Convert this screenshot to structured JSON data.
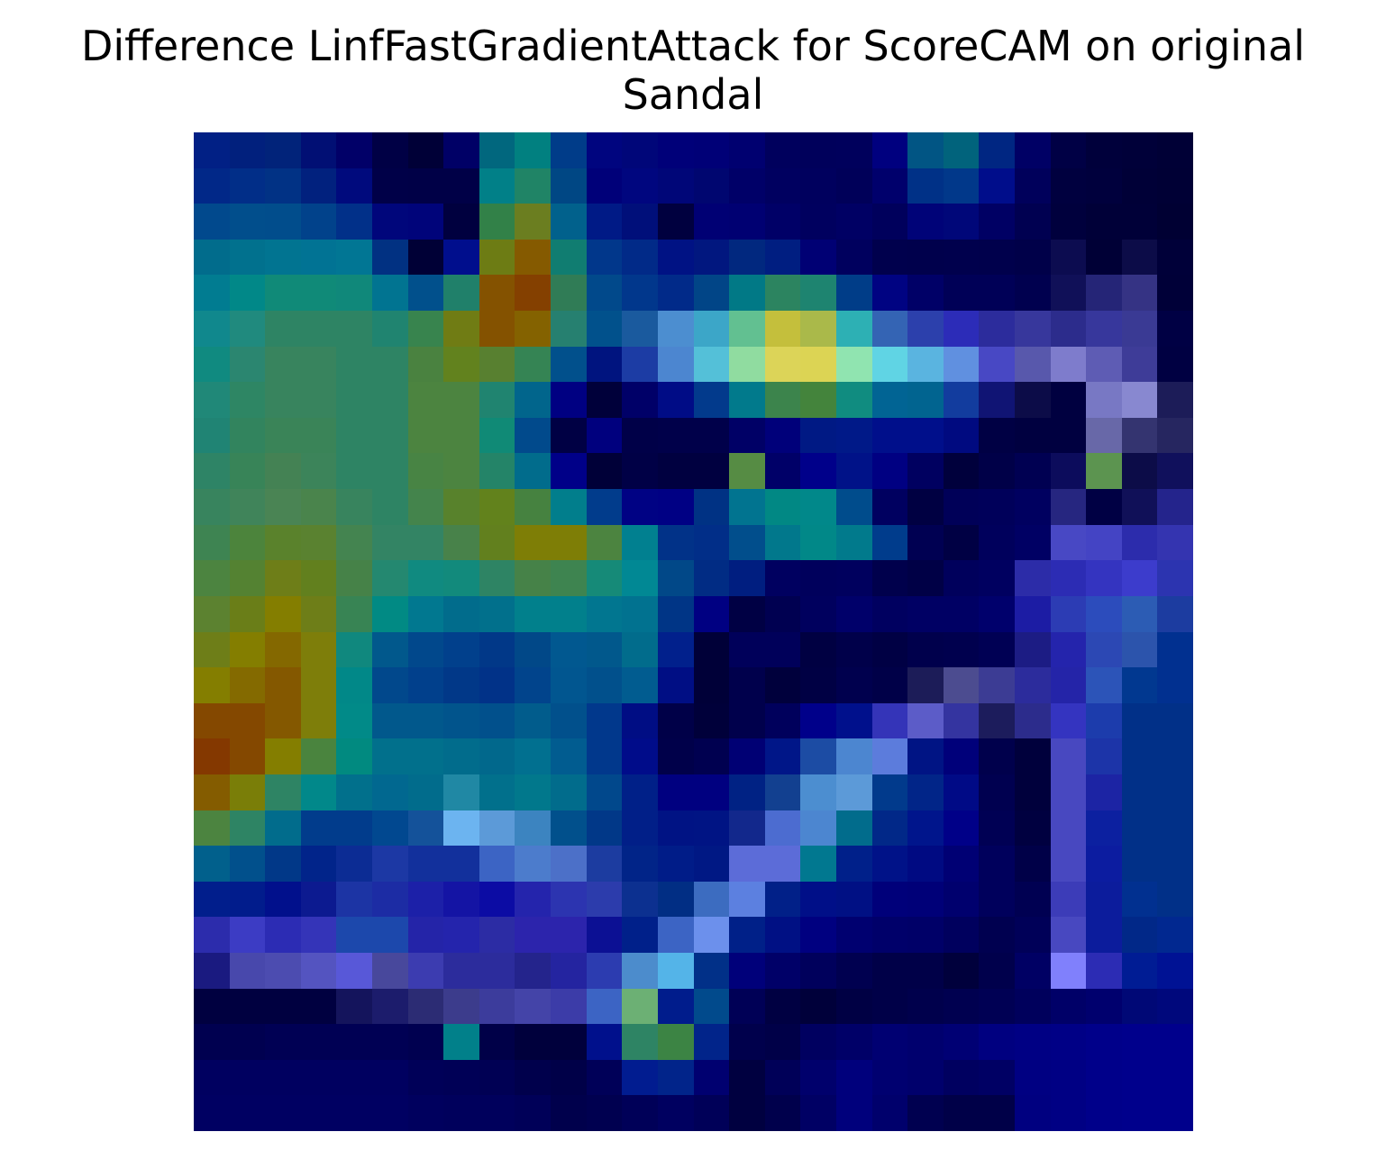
{
  "title": {
    "line1": "Difference LinfFastGradientAttack for ScoreCAM on original",
    "line2": "Sandal"
  },
  "chart_data": {
    "type": "heatmap",
    "title": "Difference LinfFastGradientAttack for ScoreCAM on original Sandal",
    "rows": 28,
    "cols": 28,
    "axes": "off",
    "grid": false,
    "legend": "none",
    "cells": [
      [
        "#012085",
        "#01207d",
        "#01237a",
        "#010f74",
        "#010068",
        "#000045",
        "#000037",
        "#000066",
        "#01677e",
        "#018080",
        "#003c89",
        "#00057f",
        "#000679",
        "#000079",
        "#000077",
        "#000070",
        "#00005d",
        "#00005b",
        "#00005c",
        "#00007f",
        "#015584",
        "#01637c",
        "#002682",
        "#000065",
        "#000045",
        "#00003b",
        "#000039",
        "#000036"
      ],
      [
        "#012888",
        "#012e88",
        "#013285",
        "#01217e",
        "#000a7d",
        "#000048",
        "#000047",
        "#000047",
        "#018088",
        "#208466",
        "#004784",
        "#000079",
        "#00067f",
        "#000678",
        "#000670",
        "#000068",
        "#000060",
        "#00005e",
        "#000059",
        "#00006c",
        "#003187",
        "#01388a",
        "#000d8b",
        "#00005b",
        "#00003f",
        "#00003d",
        "#000037",
        "#000035"
      ],
      [
        "#01498d",
        "#014e8c",
        "#014d8c",
        "#01428b",
        "#013089",
        "#00067b",
        "#00047a",
        "#00003f",
        "#328148",
        "#6b7e20",
        "#01618c",
        "#001a86",
        "#000f7a",
        "#00003f",
        "#000074",
        "#000072",
        "#000067",
        "#00005f",
        "#000064",
        "#00005c",
        "#000378",
        "#000779",
        "#000064",
        "#000051",
        "#00003d",
        "#000038",
        "#000038",
        "#000033"
      ],
      [
        "#016c8c",
        "#01718e",
        "#017491",
        "#017394",
        "#017694",
        "#013182",
        "#000036",
        "#000e8d",
        "#6d7c14",
        "#855a00",
        "#107d71",
        "#01378b",
        "#012a88",
        "#001284",
        "#01177f",
        "#01287f",
        "#001e81",
        "#000074",
        "#00005e",
        "#00004d",
        "#00004c",
        "#00004d",
        "#00004c",
        "#000049",
        "#0c0c50",
        "#000036",
        "#0c0c48",
        "#000039"
      ],
      [
        "#017c91",
        "#018888",
        "#108a78",
        "#108a78",
        "#10887a",
        "#017491",
        "#01508c",
        "#20806a",
        "#845200",
        "#844000",
        "#307c56",
        "#01498b",
        "#01378c",
        "#012a89",
        "#014587",
        "#017986",
        "#2c8460",
        "#1e8470",
        "#003d88",
        "#000382",
        "#000067",
        "#000057",
        "#000057",
        "#00004f",
        "#101058",
        "#252577",
        "#353384",
        "#000038"
      ],
      [
        "#10888d",
        "#208a7e",
        "#2e8464",
        "#2e8464",
        "#2e8464",
        "#208470",
        "#38844e",
        "#707c14",
        "#845200",
        "#846200",
        "#268070",
        "#01518c",
        "#1a5a9e",
        "#4c8ed0",
        "#3ca6c8",
        "#62c091",
        "#c4bf3c",
        "#aab94a",
        "#2db0b4",
        "#3464b4",
        "#2c40ac",
        "#2c2cb8",
        "#2c2c9c",
        "#37379c",
        "#2c2c8c",
        "#37379c",
        "#3a3a94",
        "#000044"
      ],
      [
        "#108a80",
        "#2b8670",
        "#38845e",
        "#38845e",
        "#2e8464",
        "#2e8464",
        "#4a8240",
        "#62821e",
        "#588030",
        "#358454",
        "#01508c",
        "#00147f",
        "#1c3ca4",
        "#4c86d0",
        "#54c0d8",
        "#90dca0",
        "#dcd458",
        "#dcd454",
        "#90e4b0",
        "#60d4e4",
        "#5ab4e0",
        "#6090e0",
        "#4848c4",
        "#5858ac",
        "#7e7ccc",
        "#5e5cb4",
        "#3e3c98",
        "#000042"
      ],
      [
        "#208878",
        "#2e8664",
        "#38845e",
        "#38845e",
        "#2e8464",
        "#2e8464",
        "#4c8440",
        "#4c8440",
        "#208470",
        "#01658c",
        "#000082",
        "#00003a",
        "#000068",
        "#000c86",
        "#023a8c",
        "#017a8c",
        "#3c844c",
        "#44843c",
        "#108c80",
        "#016494",
        "#016490",
        "#123c9e",
        "#101474",
        "#0c0c48",
        "#000040",
        "#7878c4",
        "#8888d0",
        "#1c1c58"
      ],
      [
        "#208474",
        "#32845e",
        "#3a8458",
        "#3a8458",
        "#2e8464",
        "#2e8464",
        "#4c8440",
        "#4c8440",
        "#108a76",
        "#014a8c",
        "#000044",
        "#00007e",
        "#000048",
        "#00004a",
        "#00004a",
        "#000066",
        "#00007a",
        "#001984",
        "#001988",
        "#000f8b",
        "#000f8b",
        "#000a80",
        "#000044",
        "#000040",
        "#000040",
        "#6868a8",
        "#343470",
        "#262660"
      ],
      [
        "#2e8466",
        "#388458",
        "#448254",
        "#3c845a",
        "#2e8464",
        "#2e8464",
        "#488444",
        "#4c8440",
        "#248468",
        "#016c8c",
        "#000088",
        "#000038",
        "#000046",
        "#000040",
        "#000040",
        "#568c44",
        "#000068",
        "#00008a",
        "#001288",
        "#000082",
        "#000060",
        "#00003c",
        "#000048",
        "#000052",
        "#0c0c5c",
        "#5c9450",
        "#0c0c48",
        "#10105c"
      ],
      [
        "#38845e",
        "#40845a",
        "#4a8454",
        "#4a844c",
        "#38845e",
        "#2e8464",
        "#44844c",
        "#58822c",
        "#62821c",
        "#468240",
        "#017e8c",
        "#013c8c",
        "#000284",
        "#000084",
        "#003284",
        "#017490",
        "#018884",
        "#01888a",
        "#004c8c",
        "#000060",
        "#000042",
        "#000058",
        "#00005a",
        "#000060",
        "#262680",
        "#000044",
        "#101058",
        "#24248c"
      ],
      [
        "#3e8452",
        "#4c843c",
        "#5a822c",
        "#5a8230",
        "#448450",
        "#338464",
        "#338464",
        "#48824a",
        "#62801e",
        "#7e7e06",
        "#7e7e06",
        "#4c8440",
        "#018090",
        "#013288",
        "#012e88",
        "#014e8c",
        "#01788c",
        "#018888",
        "#017a8c",
        "#003c8c",
        "#000052",
        "#000044",
        "#00005c",
        "#000064",
        "#4848c4",
        "#4444c4",
        "#2c2cac",
        "#3434b0"
      ],
      [
        "#4c8440",
        "#548232",
        "#6e7e18",
        "#62801e",
        "#468248",
        "#248870",
        "#108a80",
        "#128a7c",
        "#2e8464",
        "#468248",
        "#3e8450",
        "#168a78",
        "#018894",
        "#014888",
        "#012c84",
        "#001e80",
        "#000060",
        "#00005c",
        "#00005e",
        "#00004c",
        "#000046",
        "#00005c",
        "#000060",
        "#2c2ca8",
        "#2c2cb4",
        "#3434c0",
        "#3c3ccc",
        "#2c34b0"
      ],
      [
        "#5c8230",
        "#6a7e18",
        "#847e00",
        "#6e7e18",
        "#388454",
        "#018a84",
        "#017890",
        "#016c8c",
        "#01708c",
        "#01808c",
        "#01808c",
        "#017690",
        "#017290",
        "#003586",
        "#000082",
        "#000044",
        "#000051",
        "#00005e",
        "#00006a",
        "#000060",
        "#000064",
        "#000064",
        "#00006c",
        "#1c1ca4",
        "#2c3cb4",
        "#2c4cbc",
        "#2c5cb4",
        "#1c3ca0"
      ],
      [
        "#6e7e18",
        "#847e00",
        "#846800",
        "#7e7e0a",
        "#10887e",
        "#01588c",
        "#01488c",
        "#01408c",
        "#013888",
        "#014888",
        "#015890",
        "#01588c",
        "#016c8c",
        "#01208c",
        "#000038",
        "#00005a",
        "#00005a",
        "#000042",
        "#00004a",
        "#000044",
        "#00004c",
        "#00004e",
        "#000054",
        "#1c1c84",
        "#2424ac",
        "#2c48b4",
        "#2c54ac",
        "#013090"
      ],
      [
        "#847e00",
        "#846a00",
        "#845800",
        "#7e7e0a",
        "#018888",
        "#01488c",
        "#01408c",
        "#013888",
        "#013288",
        "#01448c",
        "#015690",
        "#01508c",
        "#015c90",
        "#000e84",
        "#000038",
        "#00004c",
        "#00003c",
        "#000044",
        "#00004e",
        "#000048",
        "#1c1c58",
        "#4c4c90",
        "#3c3c94",
        "#2c2c9c",
        "#2424a8",
        "#2c54b8",
        "#013890",
        "#013090"
      ],
      [
        "#844800",
        "#844800",
        "#845800",
        "#7e7e0a",
        "#018a88",
        "#01588c",
        "#01588c",
        "#01548c",
        "#01508c",
        "#015c8c",
        "#01508c",
        "#01388c",
        "#000d84",
        "#000048",
        "#00003a",
        "#00004c",
        "#00005c",
        "#00008a",
        "#00108c",
        "#3434b8",
        "#5c5cc8",
        "#3434a0",
        "#1c1c5c",
        "#2c2c8c",
        "#3434c0",
        "#1c3cac",
        "#013088",
        "#013088"
      ],
      [
        "#843800",
        "#844800",
        "#847e00",
        "#4a843e",
        "#018a80",
        "#01708c",
        "#01708c",
        "#016c8c",
        "#01688c",
        "#017090",
        "#015c90",
        "#01388c",
        "#000c8a",
        "#00004a",
        "#000050",
        "#000074",
        "#001688",
        "#1c4ca4",
        "#4c86d0",
        "#5c7cdc",
        "#001484",
        "#00007a",
        "#00004c",
        "#00003c",
        "#4848c0",
        "#1c34a8",
        "#013088",
        "#013088"
      ],
      [
        "#845c00",
        "#7a7e08",
        "#2e8464",
        "#01888a",
        "#01708c",
        "#016890",
        "#016c8c",
        "#2088a4",
        "#01708c",
        "#01788c",
        "#016c8c",
        "#01488c",
        "#002088",
        "#000080",
        "#000080",
        "#002284",
        "#124090",
        "#4c8ed0",
        "#5c9ad8",
        "#013a8c",
        "#012588",
        "#000a86",
        "#000050",
        "#00003c",
        "#4848c0",
        "#1c24a4",
        "#013088",
        "#013088"
      ],
      [
        "#4c8440",
        "#2e8464",
        "#016c8c",
        "#013c8c",
        "#013c8c",
        "#014890",
        "#14529a",
        "#6cb4f0",
        "#5c9ad8",
        "#3c84c0",
        "#01508c",
        "#013888",
        "#011f88",
        "#001384",
        "#001484",
        "#12288c",
        "#4c6cd0",
        "#4c86d0",
        "#016c8c",
        "#012888",
        "#00158c",
        "#000088",
        "#000054",
        "#000040",
        "#4848c0",
        "#0c20a0",
        "#013088",
        "#013088"
      ],
      [
        "#01608c",
        "#01508c",
        "#013888",
        "#01248a",
        "#0c2c94",
        "#1c38a4",
        "#12309c",
        "#12309c",
        "#3c64c4",
        "#4c7ccc",
        "#4c70c8",
        "#1c3ca0",
        "#012488",
        "#001c88",
        "#001884",
        "#5c6cd8",
        "#5c6cd8",
        "#017890",
        "#00208a",
        "#001288",
        "#000a82",
        "#000074",
        "#00005c",
        "#000048",
        "#4848c0",
        "#0c1ca0",
        "#013088",
        "#013088"
      ],
      [
        "#011e8c",
        "#011c8c",
        "#01108c",
        "#0c1a90",
        "#1c34a4",
        "#1c2ca4",
        "#1c20a8",
        "#1414a4",
        "#0c0ca4",
        "#2424ac",
        "#2c34b0",
        "#2c3cac",
        "#0c3090",
        "#012e84",
        "#3c6cc0",
        "#5c80e0",
        "#012088",
        "#000f88",
        "#001084",
        "#00007a",
        "#000078",
        "#00006e",
        "#00005c",
        "#000052",
        "#3c3cb8",
        "#0c1c9c",
        "#013090",
        "#013088"
      ],
      [
        "#2c2cac",
        "#3c3cc4",
        "#2c2cb4",
        "#3434b8",
        "#1c48ac",
        "#1c48ac",
        "#2424a8",
        "#2424ac",
        "#2c2ca4",
        "#2c24ac",
        "#2c24ac",
        "#0c1094",
        "#00208a",
        "#3c64c4",
        "#6c90ec",
        "#002088",
        "#001084",
        "#000080",
        "#000070",
        "#00006a",
        "#000068",
        "#00005e",
        "#000050",
        "#000058",
        "#4848c0",
        "#0c1c9c",
        "#012888",
        "#012890"
      ],
      [
        "#1a1a80",
        "#4848ac",
        "#4c4cb0",
        "#5454c0",
        "#5858d8",
        "#48489c",
        "#3c3cb0",
        "#2c2c9c",
        "#2c2c9c",
        "#24248c",
        "#2424a0",
        "#2c3cb0",
        "#4c8ccc",
        "#54b4e8",
        "#013088",
        "#00007a",
        "#000068",
        "#00005c",
        "#000050",
        "#000048",
        "#000048",
        "#00003c",
        "#00004c",
        "#000064",
        "#8080fc",
        "#2c2cb4",
        "#001c94",
        "#001294"
      ],
      [
        "#000040",
        "#000040",
        "#000040",
        "#000040",
        "#14145c",
        "#1c1c6c",
        "#2c2c74",
        "#3c3c8c",
        "#3c3c9c",
        "#4444a8",
        "#3c3ca8",
        "#3c64c4",
        "#6cb074",
        "#001c8c",
        "#014a8c",
        "#000056",
        "#000042",
        "#00003a",
        "#000044",
        "#000048",
        "#00004c",
        "#000050",
        "#000054",
        "#00005c",
        "#000068",
        "#00006e",
        "#000876",
        "#00087c"
      ],
      [
        "#000050",
        "#000050",
        "#000054",
        "#000054",
        "#000054",
        "#000054",
        "#000050",
        "#01808a",
        "#000048",
        "#00003c",
        "#00003c",
        "#00108c",
        "#2e8464",
        "#3c8444",
        "#01248a",
        "#00004c",
        "#000048",
        "#000060",
        "#000068",
        "#000072",
        "#00006e",
        "#000074",
        "#000080",
        "#000084",
        "#000086",
        "#00008a",
        "#00008c",
        "#00008c"
      ],
      [
        "#000060",
        "#000060",
        "#000060",
        "#000060",
        "#000060",
        "#000060",
        "#000058",
        "#000056",
        "#000054",
        "#00004c",
        "#000048",
        "#000058",
        "#011c90",
        "#01248a",
        "#000070",
        "#000040",
        "#000058",
        "#00006c",
        "#00007c",
        "#000070",
        "#00006c",
        "#000060",
        "#000064",
        "#000082",
        "#000084",
        "#00008a",
        "#00008c",
        "#00008c"
      ],
      [
        "#000062",
        "#000062",
        "#000062",
        "#000062",
        "#000062",
        "#000062",
        "#00005e",
        "#00005c",
        "#00005c",
        "#000058",
        "#00004c",
        "#000050",
        "#000058",
        "#000060",
        "#000058",
        "#000040",
        "#00004c",
        "#000064",
        "#00007c",
        "#00006c",
        "#000050",
        "#000048",
        "#000048",
        "#000080",
        "#000084",
        "#00008a",
        "#00008c",
        "#00008c"
      ]
    ]
  }
}
